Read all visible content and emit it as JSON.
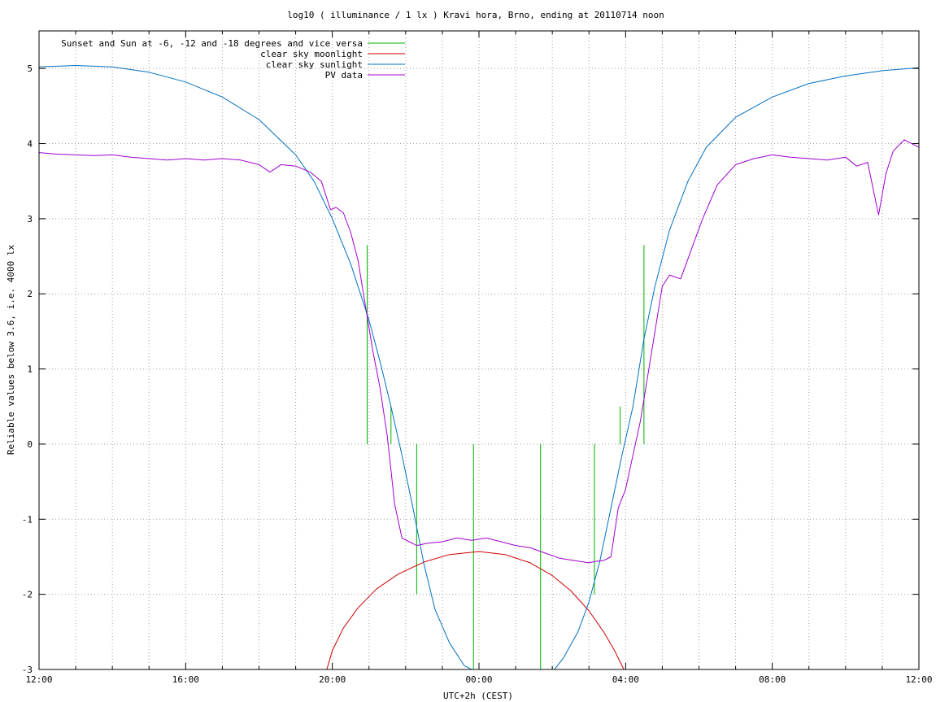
{
  "chart_data": {
    "type": "line",
    "title": "log10 ( illuminance / 1 lx ) Kravi hora, Brno, ending at 20110714 noon",
    "xlabel": "UTC+2h (CEST)",
    "ylabel": "Reliable values below 3.6, i.e. 4000 lx",
    "xlim": [
      12,
      36
    ],
    "ylim": [
      -3,
      5.5
    ],
    "x_ticks": [
      {
        "value": 12,
        "label": "12:00"
      },
      {
        "value": 16,
        "label": "16:00"
      },
      {
        "value": 20,
        "label": "20:00"
      },
      {
        "value": 24,
        "label": "00:00"
      },
      {
        "value": 28,
        "label": "04:00"
      },
      {
        "value": 32,
        "label": "08:00"
      },
      {
        "value": 36,
        "label": "12:00"
      }
    ],
    "y_ticks": [
      {
        "value": -3,
        "label": "-3"
      },
      {
        "value": -2,
        "label": "-2"
      },
      {
        "value": -1,
        "label": "-1"
      },
      {
        "value": 0,
        "label": "0"
      },
      {
        "value": 1,
        "label": "1"
      },
      {
        "value": 2,
        "label": "2"
      },
      {
        "value": 3,
        "label": "3"
      },
      {
        "value": 4,
        "label": "4"
      },
      {
        "value": 5,
        "label": "5"
      }
    ],
    "grid": true,
    "legend_position": "top-left",
    "series": [
      {
        "name": "Sunset and Sun at -6, -12 and -18 degrees and vice versa",
        "color": "#00b000",
        "style": "vertical-lines",
        "lines": [
          {
            "x": 20.95,
            "y0": 0,
            "y1": 2.65
          },
          {
            "x": 21.6,
            "y0": 0,
            "y1": 0.5
          },
          {
            "x": 22.3,
            "y0": -2.0,
            "y1": 0
          },
          {
            "x": 23.85,
            "y0": -3.0,
            "y1": 0
          },
          {
            "x": 25.68,
            "y0": -3.0,
            "y1": 0
          },
          {
            "x": 27.15,
            "y0": -2.0,
            "y1": 0
          },
          {
            "x": 27.85,
            "y0": 0,
            "y1": 0.5
          },
          {
            "x": 28.5,
            "y0": 0,
            "y1": 2.65
          }
        ]
      },
      {
        "name": "clear sky moonlight",
        "color": "#d00000",
        "x": [
          19.85,
          20.0,
          20.3,
          20.7,
          21.2,
          21.8,
          22.5,
          23.2,
          24.0,
          24.7,
          25.4,
          26.0,
          26.5,
          27.0,
          27.4,
          27.7,
          27.95
        ],
        "y": [
          -3.0,
          -2.75,
          -2.45,
          -2.18,
          -1.93,
          -1.73,
          -1.57,
          -1.47,
          -1.43,
          -1.47,
          -1.58,
          -1.75,
          -1.95,
          -2.22,
          -2.5,
          -2.75,
          -3.0
        ]
      },
      {
        "name": "clear sky sunlight",
        "color": "#0070c0",
        "x": [
          12.0,
          13.0,
          14.0,
          15.0,
          16.0,
          17.0,
          18.0,
          19.0,
          19.5,
          20.0,
          20.5,
          21.0,
          21.3,
          21.6,
          21.9,
          22.2,
          22.5,
          22.8,
          23.2,
          23.6,
          24.0,
          24.2,
          24.6,
          25.0,
          25.5,
          25.9,
          26.3,
          26.7,
          27.0,
          27.3,
          27.6,
          27.9,
          28.2,
          28.5,
          28.8,
          29.2,
          29.7,
          30.2,
          31.0,
          32.0,
          33.0,
          34.0,
          35.0,
          36.0
        ],
        "y": [
          5.02,
          5.04,
          5.02,
          4.95,
          4.82,
          4.62,
          4.32,
          3.85,
          3.5,
          3.0,
          2.4,
          1.65,
          1.1,
          0.5,
          -0.15,
          -0.85,
          -1.6,
          -2.2,
          -2.65,
          -2.95,
          -3.05,
          -3.1,
          -3.2,
          -3.22,
          -3.2,
          -3.1,
          -2.85,
          -2.5,
          -2.1,
          -1.55,
          -0.85,
          -0.15,
          0.5,
          1.4,
          2.1,
          2.85,
          3.5,
          3.95,
          4.35,
          4.62,
          4.8,
          4.9,
          4.97,
          5.01
        ]
      },
      {
        "name": "PV data",
        "color": "#a000d0",
        "x": [
          12.0,
          12.5,
          13.0,
          13.5,
          14.0,
          14.5,
          15.0,
          15.5,
          16.0,
          16.5,
          17.0,
          17.5,
          18.0,
          18.3,
          18.6,
          19.0,
          19.4,
          19.7,
          19.95,
          20.1,
          20.3,
          20.5,
          20.7,
          20.9,
          21.1,
          21.3,
          21.5,
          21.7,
          21.9,
          22.1,
          22.3,
          22.6,
          23.0,
          23.4,
          23.8,
          24.2,
          24.6,
          25.0,
          25.4,
          25.8,
          26.2,
          26.6,
          27.0,
          27.2,
          27.4,
          27.6,
          27.8,
          28.0,
          28.2,
          28.4,
          28.6,
          28.8,
          29.0,
          29.2,
          29.5,
          29.8,
          30.1,
          30.5,
          31.0,
          31.5,
          32.0,
          32.5,
          33.0,
          33.5,
          34.0,
          34.3,
          34.6,
          34.9,
          35.1,
          35.3,
          35.6,
          36.0
        ],
        "y": [
          3.88,
          3.86,
          3.85,
          3.84,
          3.85,
          3.82,
          3.8,
          3.78,
          3.8,
          3.78,
          3.8,
          3.78,
          3.72,
          3.62,
          3.72,
          3.7,
          3.62,
          3.5,
          3.12,
          3.15,
          3.08,
          2.82,
          2.45,
          1.85,
          1.25,
          0.75,
          0.1,
          -0.8,
          -1.25,
          -1.3,
          -1.35,
          -1.32,
          -1.3,
          -1.25,
          -1.28,
          -1.25,
          -1.3,
          -1.35,
          -1.38,
          -1.45,
          -1.52,
          -1.55,
          -1.58,
          -1.56,
          -1.55,
          -1.5,
          -0.85,
          -0.6,
          -0.15,
          0.3,
          0.9,
          1.5,
          2.1,
          2.25,
          2.2,
          2.6,
          3.0,
          3.45,
          3.72,
          3.8,
          3.85,
          3.82,
          3.8,
          3.78,
          3.82,
          3.7,
          3.75,
          3.05,
          3.6,
          3.9,
          4.05,
          3.95
        ]
      }
    ]
  }
}
